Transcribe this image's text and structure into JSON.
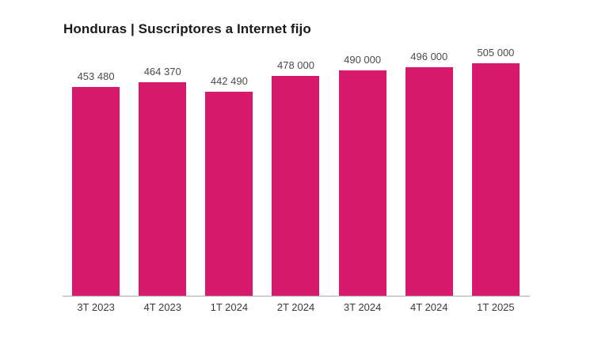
{
  "chart_data": {
    "type": "bar",
    "title": "Honduras | Suscriptores a Internet fijo",
    "categories": [
      "3T 2023",
      "4T 2023",
      "1T 2024",
      "2T 2024",
      "3T 2024",
      "4T 2024",
      "1T 2025"
    ],
    "values": [
      453480,
      464370,
      442490,
      478000,
      490000,
      496000,
      505000
    ],
    "value_labels": [
      "453 480",
      "464 370",
      "442 490",
      "478 000",
      "490 000",
      "496 000",
      "505 000"
    ],
    "xlabel": "",
    "ylabel": "",
    "ylim": [
      0,
      505000
    ],
    "grid": false,
    "legend": "none",
    "colors": {
      "bar": "#d81a6c",
      "axis_line": "#aaaaaa",
      "value_label": "#4a4a4a",
      "tick_label": "#3a3a3a",
      "title": "#1a1a1a",
      "background": "#ffffff"
    }
  }
}
